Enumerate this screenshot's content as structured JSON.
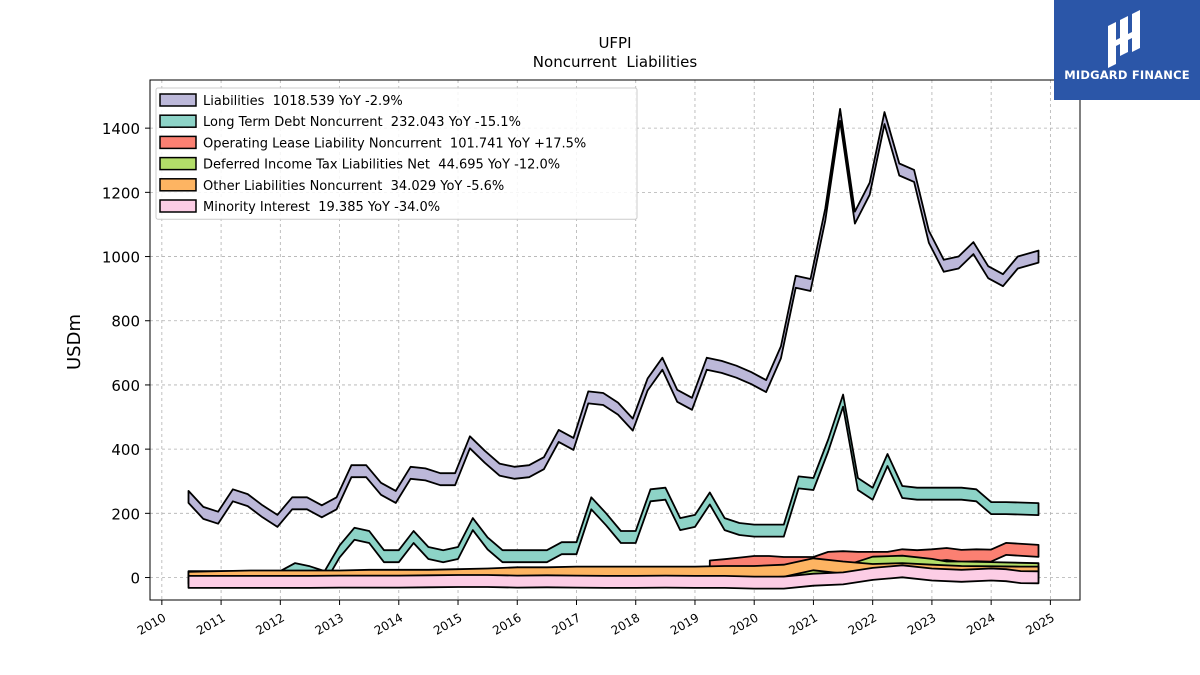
{
  "brand": {
    "name": "MIDGARD FINANCE",
    "bg": "#2b56a8"
  },
  "chart_data": {
    "type": "area",
    "title": "UFPI",
    "subtitle": "Noncurrent  Liabilities",
    "ylabel": "USDm",
    "xlabel": "",
    "ylim": [
      -70,
      1550
    ],
    "xlim": [
      2009.8,
      2025.5
    ],
    "yticks": [
      0,
      200,
      400,
      600,
      800,
      1000,
      1200,
      1400
    ],
    "xticks": [
      "2010",
      "2011",
      "2012",
      "2013",
      "2014",
      "2015",
      "2016",
      "2017",
      "2018",
      "2019",
      "2020",
      "2021",
      "2022",
      "2023",
      "2024",
      "2025"
    ],
    "grid": true,
    "legend_position": "top-left",
    "series": [
      {
        "name": "Liabilities",
        "legend": "Liabilities  1018.539 YoY -2.9%",
        "color": "#bcb8d9",
        "x": [
          2010.45,
          2010.7,
          2010.95,
          2011.2,
          2011.45,
          2011.7,
          2011.95,
          2012.2,
          2012.45,
          2012.7,
          2012.95,
          2013.2,
          2013.45,
          2013.7,
          2013.95,
          2014.2,
          2014.45,
          2014.7,
          2014.95,
          2015.2,
          2015.45,
          2015.7,
          2015.95,
          2016.2,
          2016.45,
          2016.7,
          2016.95,
          2017.2,
          2017.45,
          2017.7,
          2017.95,
          2018.2,
          2018.45,
          2018.7,
          2018.95,
          2019.2,
          2019.45,
          2019.7,
          2019.95,
          2020.2,
          2020.45,
          2020.7,
          2020.95,
          2021.2,
          2021.45,
          2021.7,
          2021.95,
          2022.2,
          2022.45,
          2022.7,
          2022.95,
          2023.2,
          2023.45,
          2023.7,
          2023.95,
          2024.2,
          2024.45,
          2024.8
        ],
        "values": [
          270,
          220,
          205,
          275,
          260,
          225,
          195,
          250,
          250,
          225,
          250,
          350,
          350,
          295,
          270,
          345,
          340,
          325,
          325,
          440,
          395,
          355,
          345,
          350,
          375,
          460,
          435,
          580,
          575,
          545,
          495,
          620,
          685,
          585,
          560,
          685,
          675,
          660,
          640,
          615,
          720,
          940,
          930,
          1150,
          1460,
          1140,
          1230,
          1450,
          1290,
          1270,
          1080,
          990,
          1000,
          1045,
          970,
          945,
          1000,
          1018.5
        ]
      },
      {
        "name": "Long Term Debt Noncurrent",
        "legend": "Long Term Debt Noncurrent  232.043 YoY -15.1%",
        "color": "#8dd3c7",
        "x": [
          2012.0,
          2012.25,
          2012.5,
          2012.75,
          2013.0,
          2013.25,
          2013.5,
          2013.75,
          2014.0,
          2014.25,
          2014.5,
          2014.75,
          2015.0,
          2015.25,
          2015.5,
          2015.75,
          2016.0,
          2016.25,
          2016.5,
          2016.75,
          2017.0,
          2017.25,
          2017.5,
          2017.75,
          2018.0,
          2018.25,
          2018.5,
          2018.75,
          2019.0,
          2019.25,
          2019.5,
          2019.75,
          2020.0,
          2020.25,
          2020.5,
          2020.75,
          2021.0,
          2021.25,
          2021.5,
          2021.75,
          2022.0,
          2022.25,
          2022.5,
          2022.75,
          2023.0,
          2023.25,
          2023.5,
          2023.75,
          2024.0,
          2024.25,
          2024.8
        ],
        "values": [
          20,
          45,
          35,
          20,
          100,
          155,
          145,
          85,
          85,
          145,
          95,
          85,
          95,
          185,
          125,
          85,
          85,
          85,
          85,
          110,
          110,
          250,
          200,
          145,
          145,
          275,
          280,
          185,
          195,
          265,
          185,
          170,
          165,
          165,
          165,
          315,
          310,
          430,
          570,
          310,
          280,
          385,
          285,
          280,
          280,
          280,
          280,
          275,
          235,
          235,
          232
        ]
      },
      {
        "name": "Operating Lease Liability Noncurrent",
        "legend": "Operating Lease Liability Noncurrent  101.741 YoY +17.5%",
        "color": "#fb8072",
        "x": [
          2019.25,
          2019.5,
          2019.75,
          2020.0,
          2020.25,
          2020.5,
          2020.75,
          2021.0,
          2021.25,
          2021.5,
          2021.75,
          2022.0,
          2022.25,
          2022.5,
          2022.75,
          2023.0,
          2023.25,
          2023.5,
          2023.75,
          2024.0,
          2024.25,
          2024.8
        ],
        "values": [
          53,
          57,
          62,
          67,
          67,
          64,
          64,
          64,
          80,
          82,
          80,
          80,
          80,
          88,
          85,
          88,
          92,
          86,
          88,
          87,
          108,
          101.7
        ]
      },
      {
        "name": "Deferred Income Tax Liabilities Net",
        "legend": "Deferred Income Tax Liabilities Net  44.695 YoY -12.0%",
        "color": "#b3de69",
        "x": [
          2010.45,
          2011.0,
          2011.5,
          2012.0,
          2012.5,
          2013.0,
          2013.5,
          2014.0,
          2014.5,
          2015.0,
          2015.5,
          2016.0,
          2016.5,
          2017.0,
          2017.5,
          2018.0,
          2018.5,
          2019.0,
          2019.5,
          2020.0,
          2020.5,
          2021.0,
          2021.5,
          2022.0,
          2022.5,
          2023.0,
          2023.25,
          2023.5,
          2024.0,
          2024.5,
          2024.8
        ],
        "values": [
          20,
          20,
          20,
          20,
          20,
          20,
          20,
          20,
          20,
          20,
          20,
          20,
          20,
          20,
          20,
          20,
          20,
          22,
          22,
          22,
          25,
          35,
          35,
          65,
          68,
          58,
          50,
          50,
          48,
          46,
          44.7
        ]
      },
      {
        "name": "Other Liabilities Noncurrent",
        "legend": "Other Liabilities Noncurrent  34.029 YoY -5.6%",
        "color": "#fdb462",
        "x": [
          2010.45,
          2011.0,
          2011.5,
          2012.0,
          2012.5,
          2013.0,
          2013.5,
          2014.0,
          2014.5,
          2015.0,
          2015.5,
          2016.0,
          2016.5,
          2017.0,
          2017.5,
          2018.0,
          2018.5,
          2019.0,
          2019.5,
          2020.0,
          2020.5,
          2021.0,
          2021.5,
          2022.0,
          2022.5,
          2023.0,
          2023.5,
          2024.0,
          2024.5,
          2024.8
        ],
        "values": [
          18,
          20,
          22,
          22,
          22,
          22,
          24,
          24,
          24,
          26,
          28,
          32,
          32,
          34,
          34,
          34,
          34,
          34,
          36,
          36,
          40,
          60,
          50,
          42,
          45,
          40,
          36,
          35,
          34,
          34.0
        ]
      },
      {
        "name": "Minority Interest",
        "legend": "Minority Interest  19.385 YoY -34.0%",
        "color": "#fccde5",
        "x": [
          2010.45,
          2011.0,
          2011.5,
          2012.0,
          2012.5,
          2013.0,
          2013.5,
          2014.0,
          2014.5,
          2015.0,
          2015.5,
          2016.0,
          2016.5,
          2017.0,
          2017.5,
          2018.0,
          2018.5,
          2019.0,
          2019.5,
          2020.0,
          2020.5,
          2021.0,
          2021.5,
          2022.0,
          2022.5,
          2023.0,
          2023.5,
          2024.0,
          2024.25,
          2024.5,
          2024.8
        ],
        "values": [
          5,
          5,
          5,
          5,
          5,
          6,
          6,
          6,
          7,
          8,
          8,
          6,
          7,
          6,
          5,
          5,
          6,
          5,
          5,
          3,
          3,
          12,
          16,
          30,
          38,
          28,
          24,
          28,
          26,
          20,
          19.4
        ]
      }
    ]
  }
}
